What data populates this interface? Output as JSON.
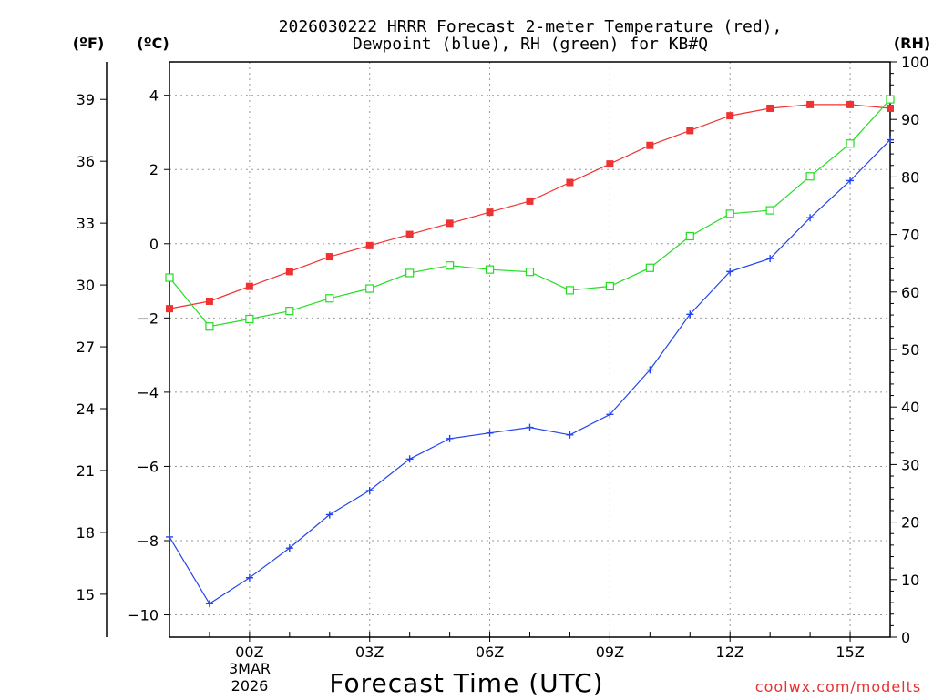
{
  "chart_data": {
    "type": "line",
    "title_line1": "2026030222 HRRR Forecast 2-meter Temperature (red),",
    "title_line2": "Dewpoint (blue), RH (green) for KB#Q",
    "xlabel": "Forecast Time (UTC)",
    "credit": "coolwx.com/modelts",
    "unit_f": "(ºF)",
    "unit_c": "(ºC)",
    "unit_rh": "(RH)",
    "date_label_1": "3MAR",
    "date_label_2": "2026",
    "x": [
      -2,
      -1,
      0,
      1,
      2,
      3,
      4,
      5,
      6,
      7,
      8,
      9,
      10,
      11,
      12,
      13,
      14,
      15,
      16
    ],
    "xlim": [
      -2,
      16
    ],
    "x_ticks": [
      {
        "x": 0,
        "label": "00Z"
      },
      {
        "x": 3,
        "label": "03Z"
      },
      {
        "x": 6,
        "label": "06Z"
      },
      {
        "x": 9,
        "label": "09Z"
      },
      {
        "x": 12,
        "label": "12Z"
      },
      {
        "x": 15,
        "label": "15Z"
      }
    ],
    "ylim_c": [
      -10.6,
      4.9
    ],
    "y_ticks_c": [
      "-10",
      "-8",
      "-6",
      "-4",
      "-2",
      "0",
      "2",
      "4"
    ],
    "y_ticks_f": [
      "15",
      "18",
      "21",
      "24",
      "27",
      "30",
      "33",
      "36",
      "39"
    ],
    "ylim_rh": [
      0,
      100
    ],
    "y_ticks_rh": [
      "0",
      "10",
      "20",
      "30",
      "40",
      "50",
      "60",
      "70",
      "80",
      "90",
      "100"
    ],
    "series": [
      {
        "name": "Temperature",
        "color": "#ee3333",
        "marker": "filled-square",
        "axis": "c",
        "values": [
          -1.75,
          -1.55,
          -1.15,
          -0.75,
          -0.35,
          -0.05,
          0.25,
          0.55,
          0.85,
          1.15,
          1.65,
          2.15,
          2.65,
          3.05,
          3.45,
          3.65,
          3.75,
          3.75,
          3.65
        ]
      },
      {
        "name": "Dewpoint",
        "color": "#2244ee",
        "marker": "plus",
        "axis": "c",
        "values": [
          -7.9,
          -9.7,
          -9.0,
          -8.2,
          -7.3,
          -6.65,
          -5.8,
          -5.25,
          -5.1,
          -4.95,
          -5.15,
          -4.6,
          -3.4,
          -1.9,
          -0.75,
          -0.4,
          0.7,
          1.7,
          2.8
        ]
      },
      {
        "name": "RH",
        "color": "#22dd22",
        "marker": "open-square",
        "axis": "rh",
        "values": [
          62.5,
          54,
          55.3,
          56.7,
          58.9,
          60.6,
          63.3,
          64.6,
          63.9,
          63.5,
          60.3,
          61.0,
          64.2,
          69.7,
          73.6,
          74.2,
          80.1,
          85.8,
          93.5
        ]
      }
    ]
  }
}
